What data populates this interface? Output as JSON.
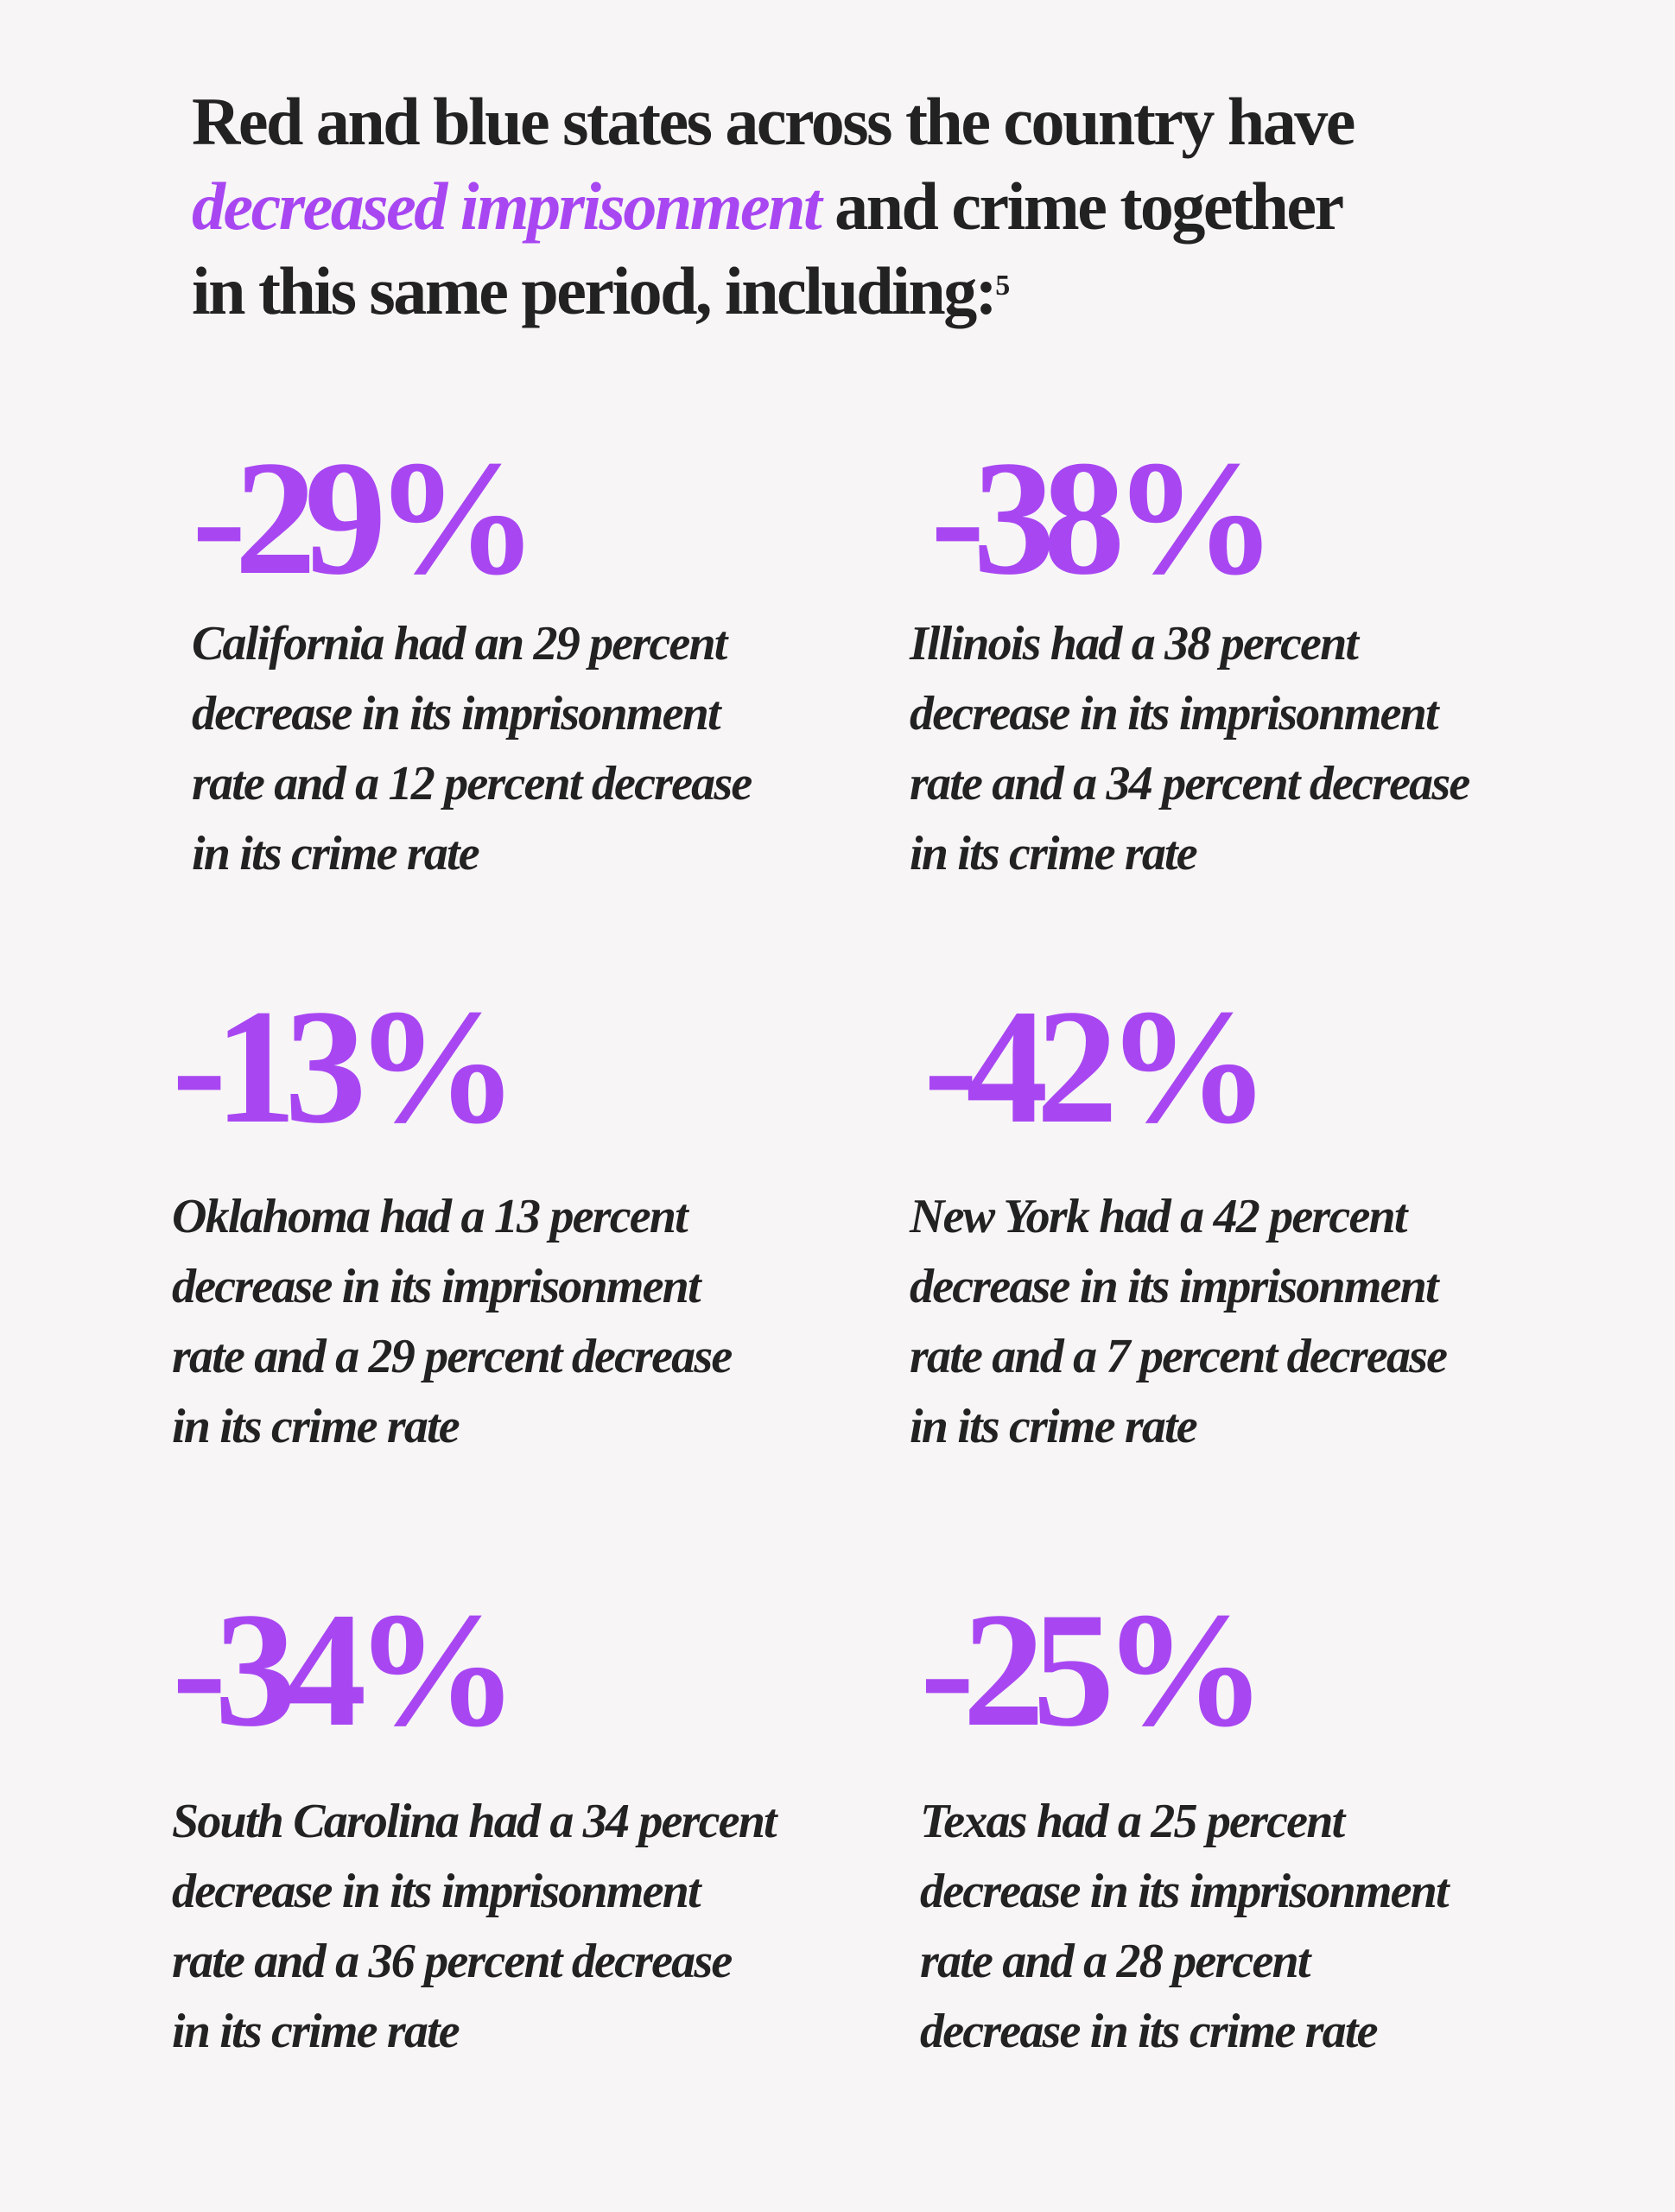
{
  "heading": {
    "part1": "Red and blue states across the country have",
    "highlight": "decreased imprisonment",
    "part2": "and crime together",
    "part3": "in this same period, including:",
    "footnote": "5"
  },
  "colors": {
    "accent": "#a847f2",
    "text": "#222222",
    "background": "#f7f5f6"
  },
  "stats": [
    {
      "value": "-29%",
      "lines": [
        "California had an 29 percent",
        "decrease in its imprisonment",
        "rate and a 12 percent decrease",
        "in its crime rate"
      ]
    },
    {
      "value": "-38%",
      "lines": [
        "Illinois had a 38 percent",
        "decrease in its imprisonment",
        "rate and a 34 percent decrease",
        "in its crime rate"
      ]
    },
    {
      "value": "-13%",
      "lines": [
        "Oklahoma had a 13 percent",
        "decrease in its imprisonment",
        "rate and a 29 percent decrease",
        "in its crime rate"
      ]
    },
    {
      "value": "-42%",
      "lines": [
        "New York had a 42 percent",
        "decrease in its imprisonment",
        "rate and a 7 percent decrease",
        "in its crime rate"
      ]
    },
    {
      "value": "-34%",
      "lines": [
        "South Carolina had a 34 percent",
        "decrease in its imprisonment",
        "rate and a 36 percent decrease",
        "in its crime rate"
      ]
    },
    {
      "value": "-25%",
      "lines": [
        "Texas had a 25 percent",
        "decrease in its imprisonment",
        "rate and a 28 percent",
        "decrease in its crime rate"
      ]
    }
  ]
}
